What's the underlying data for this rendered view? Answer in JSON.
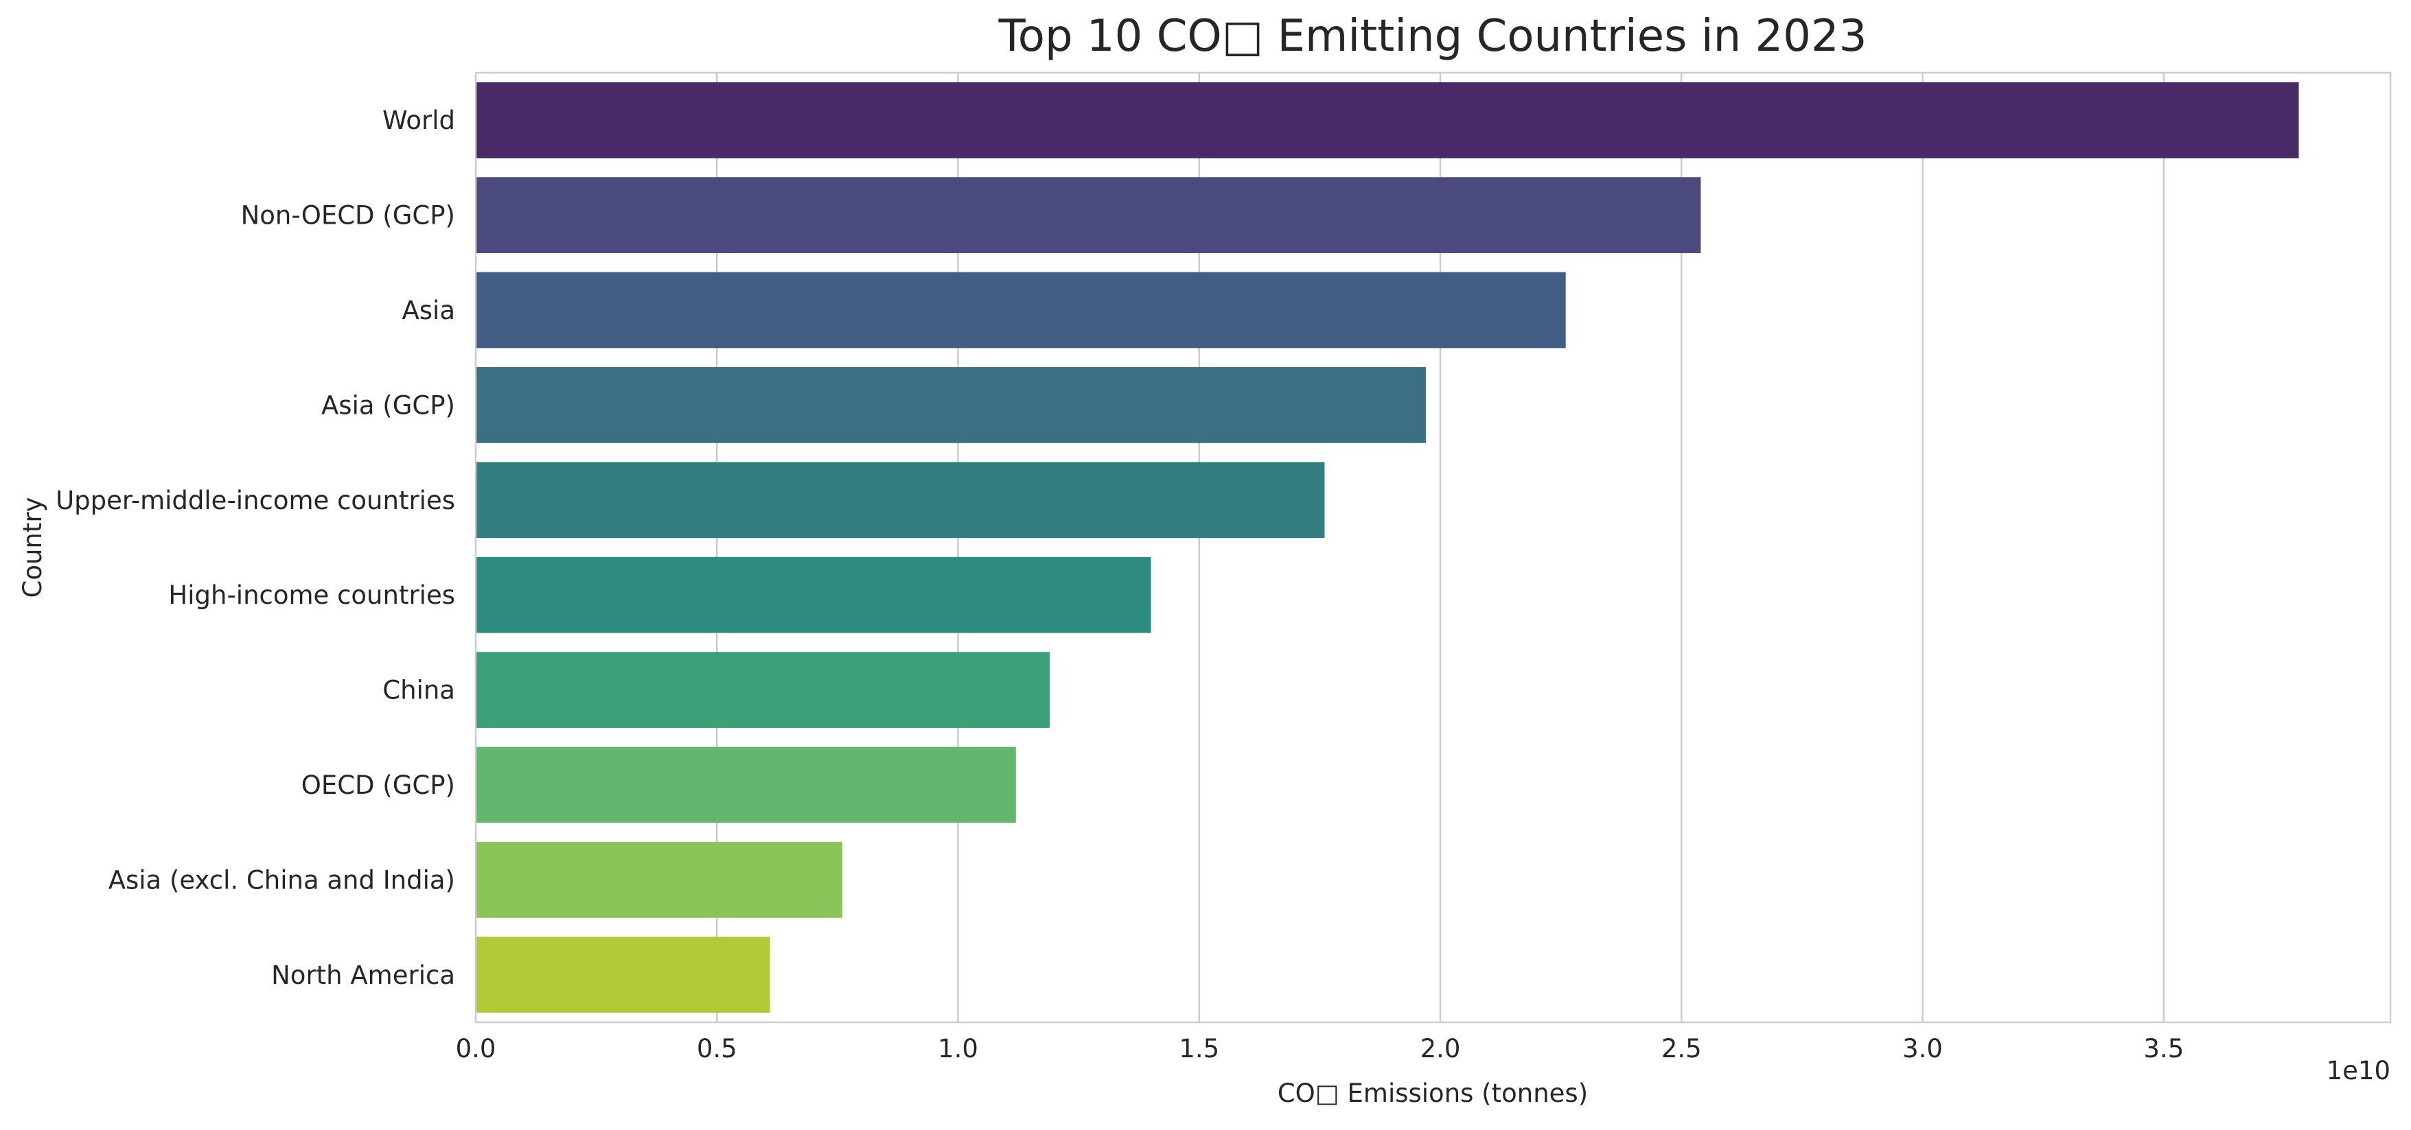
{
  "chart_data": {
    "type": "bar",
    "orientation": "horizontal",
    "title": "Top 10 CO□ Emitting Countries in 2023",
    "xlabel": "CO□ Emissions (tonnes)",
    "ylabel": "Country",
    "x_offset_label": "1e10",
    "xlim": [
      0,
      39700000000.0
    ],
    "x_ticks": [
      0,
      5000000000.0,
      10000000000.0,
      15000000000.0,
      20000000000.0,
      25000000000.0,
      30000000000.0,
      35000000000.0
    ],
    "x_tick_labels": [
      "0.0",
      "0.5",
      "1.0",
      "1.5",
      "2.0",
      "2.5",
      "3.0",
      "3.5"
    ],
    "grid": true,
    "categories": [
      "World",
      "Non-OECD (GCP)",
      "Asia",
      "Asia (GCP)",
      "Upper-middle-income countries",
      "High-income countries",
      "China",
      "OECD (GCP)",
      "Asia (excl. China and India)",
      "North America"
    ],
    "values": [
      37800000000.0,
      25400000000.0,
      22600000000.0,
      19700000000.0,
      17600000000.0,
      14000000000.0,
      11900000000.0,
      11200000000.0,
      7600000000.0,
      6100000000.0
    ],
    "colors": [
      "#482a68",
      "#4a4a7f",
      "#435e84",
      "#3a6f84",
      "#327e81",
      "#2d8c7e",
      "#39a077",
      "#62b66e",
      "#8ac55a",
      "#b1ca3a"
    ]
  }
}
